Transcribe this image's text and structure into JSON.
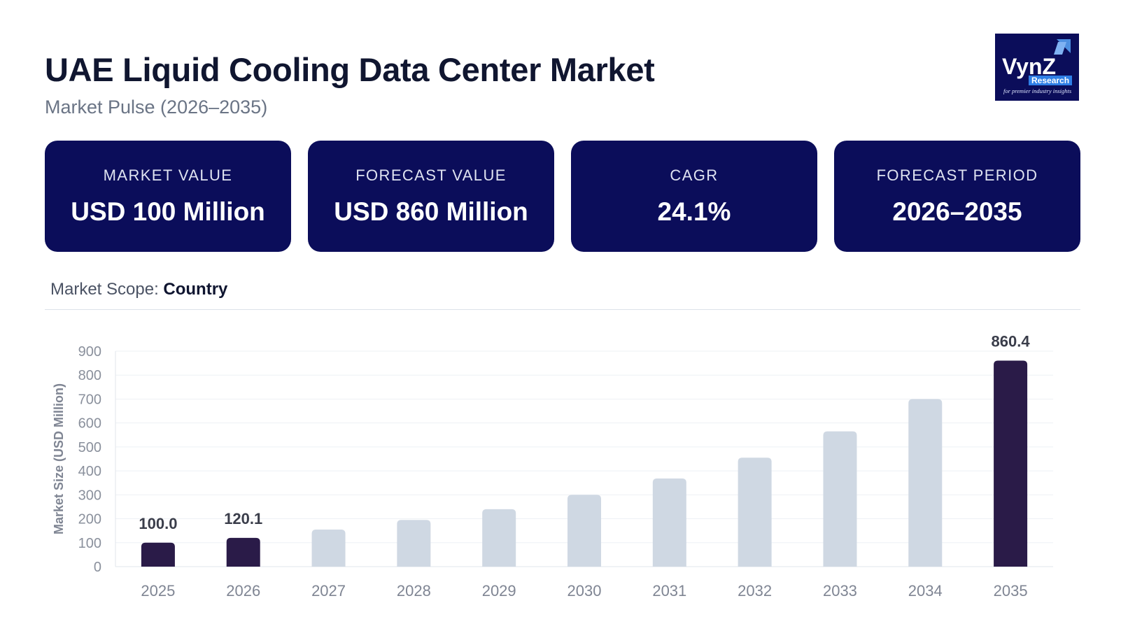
{
  "header": {
    "title": "UAE Liquid Cooling Data Center Market",
    "subtitle": "Market Pulse (2026–2035)"
  },
  "logo": {
    "name": "VynZ",
    "tag": "Research",
    "tagline": "for premier industry insights"
  },
  "cards": [
    {
      "label": "MARKET VALUE",
      "value": "USD 100 Million"
    },
    {
      "label": "FORECAST VALUE",
      "value": "USD 860 Million"
    },
    {
      "label": "CAGR",
      "value": "24.1%"
    },
    {
      "label": "FORECAST PERIOD",
      "value": "2026–2035"
    }
  ],
  "scope": {
    "label": "Market Scope: ",
    "value": "Country"
  },
  "colors": {
    "card_bg": "#0b0d5a",
    "highlight_bar": "#2a1b48",
    "muted_bar": "#cfd8e3"
  },
  "chart_data": {
    "type": "bar",
    "ylabel": "Market Size (USD Million)",
    "xlabel": "",
    "ylim": [
      0,
      900
    ],
    "yticks": [
      "0",
      "100",
      "200",
      "300",
      "400",
      "500",
      "600",
      "700",
      "800",
      "900"
    ],
    "categories": [
      "2025",
      "2026",
      "2027",
      "2028",
      "2029",
      "2030",
      "2031",
      "2032",
      "2033",
      "2034",
      "2035"
    ],
    "values": [
      100.0,
      120.1,
      155,
      195,
      240,
      300,
      368,
      455,
      565,
      700,
      860.4
    ],
    "highlighted": [
      true,
      true,
      false,
      false,
      false,
      false,
      false,
      false,
      false,
      false,
      true
    ],
    "data_labels": [
      "100.0",
      "120.1",
      "",
      "",
      "",
      "",
      "",
      "",
      "",
      "",
      "860.4"
    ],
    "grid": true
  }
}
